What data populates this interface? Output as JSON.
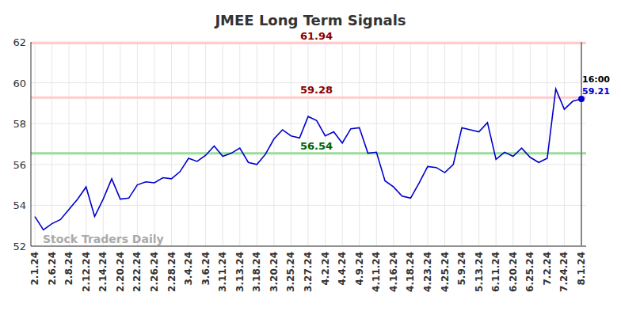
{
  "chart_data": {
    "type": "line",
    "title": "JMEE Long Term Signals",
    "watermark": "Stock Traders Daily",
    "categories": [
      "2.1.24",
      null,
      "2.6.24",
      null,
      "2.8.24",
      null,
      "2.12.24",
      null,
      "2.14.24",
      null,
      "2.20.24",
      null,
      "2.22.24",
      null,
      "2.26.24",
      null,
      "2.28.24",
      null,
      "3.4.24",
      null,
      "3.6.24",
      null,
      "3.11.24",
      null,
      "3.13.24",
      null,
      "3.18.24",
      null,
      "3.20.24",
      null,
      "3.25.24",
      null,
      "3.27.24",
      null,
      "4.2.24",
      null,
      "4.4.24",
      null,
      "4.9.24",
      null,
      "4.11.24",
      null,
      "4.16.24",
      null,
      "4.18.24",
      null,
      "4.23.24",
      null,
      "4.25.24",
      null,
      "5.9.24",
      null,
      "5.13.24",
      null,
      "6.11.24",
      null,
      "6.20.24",
      null,
      "6.25.24",
      null,
      "7.2.24",
      null,
      "7.24.24",
      null,
      "8.1.24"
    ],
    "values": [
      53.45,
      52.8,
      53.1,
      53.3,
      53.8,
      54.3,
      54.9,
      53.45,
      54.3,
      55.3,
      54.3,
      54.35,
      55.0,
      55.15,
      55.1,
      55.35,
      55.3,
      55.65,
      56.3,
      56.15,
      56.45,
      56.9,
      56.4,
      56.55,
      56.8,
      56.1,
      56.0,
      56.5,
      57.25,
      57.7,
      57.4,
      57.3,
      58.35,
      58.15,
      57.4,
      57.6,
      57.05,
      57.75,
      57.8,
      56.55,
      56.6,
      55.2,
      54.9,
      54.45,
      54.35,
      55.1,
      55.9,
      55.85,
      55.6,
      56.0,
      57.8,
      57.7,
      57.6,
      58.05,
      56.25,
      56.6,
      56.4,
      56.8,
      56.35,
      56.1,
      56.3,
      59.7,
      58.7,
      59.1,
      59.21
    ],
    "color": "#0000cc",
    "ylim": [
      52,
      62
    ],
    "yticks": [
      52,
      54,
      56,
      58,
      60,
      62
    ],
    "grid": true,
    "reference_lines": [
      {
        "value": 61.94,
        "label": "61.94",
        "color": "#ffcccc",
        "label_color": "#8b0000"
      },
      {
        "value": 59.28,
        "label": "59.28",
        "color": "#ffcccc",
        "label_color": "#8b0000"
      },
      {
        "value": 56.54,
        "label": "56.54",
        "color": "#99dd99",
        "label_color": "#006400"
      }
    ],
    "end_marker": {
      "time": "16:00",
      "label": "59.21"
    }
  }
}
